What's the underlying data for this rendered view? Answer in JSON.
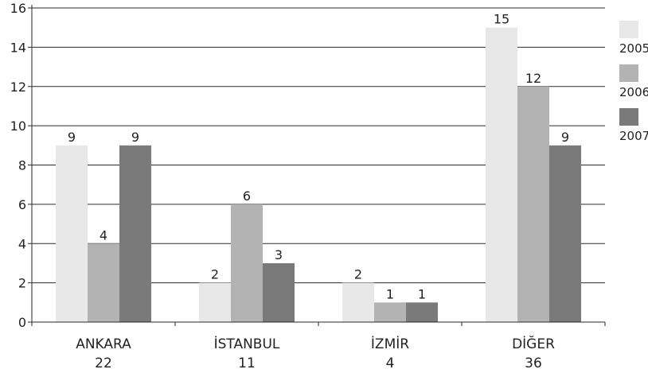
{
  "chart_data": {
    "type": "bar",
    "categories": [
      "ANKARA",
      "İSTANBUL",
      "İZMİR",
      "DİĞER"
    ],
    "category_totals": [
      "22",
      "11",
      "4",
      "36"
    ],
    "series": [
      {
        "name": "2005",
        "color": "#e8e8e8",
        "values": [
          9,
          2,
          2,
          15
        ]
      },
      {
        "name": "2006",
        "color": "#b3b3b3",
        "values": [
          4,
          6,
          1,
          12
        ]
      },
      {
        "name": "2007",
        "color": "#7a7a7a",
        "values": [
          9,
          3,
          1,
          9
        ]
      }
    ],
    "title": "",
    "xlabel": "",
    "ylabel": "",
    "ylim": [
      0,
      16
    ],
    "yticks": [
      0,
      2,
      4,
      6,
      8,
      10,
      12,
      14,
      16
    ],
    "grid": true,
    "legend_position": "right",
    "data_labels": true
  }
}
